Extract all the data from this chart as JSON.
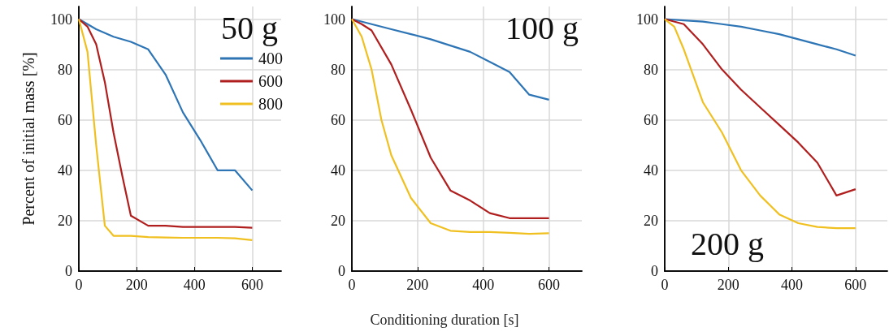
{
  "chart_data": [
    {
      "type": "line",
      "ylabel": "Percent of initial mass [%]",
      "annotations": [
        "50 g"
      ],
      "xlim": [
        0,
        700
      ],
      "xticks": [
        0,
        200,
        400,
        600
      ],
      "ylim": [
        0,
        105
      ],
      "yticks": [
        0,
        20,
        40,
        60,
        80,
        100
      ],
      "grid": true,
      "legend": "top right",
      "marker": "none",
      "line_style": "solid",
      "series": [
        {
          "name": "400",
          "color": "#2e75b6",
          "x": [
            0,
            60,
            120,
            180,
            240,
            300,
            360,
            420,
            480,
            540,
            600
          ],
          "values": [
            100,
            96,
            93,
            91,
            88,
            78,
            63,
            52,
            40,
            40,
            32
          ]
        },
        {
          "name": "600",
          "color": "#b01e1e",
          "x": [
            0,
            30,
            60,
            90,
            120,
            150,
            180,
            240,
            300,
            360,
            420,
            480,
            540,
            600
          ],
          "values": [
            100,
            97,
            90,
            75,
            55,
            38,
            22,
            18,
            18,
            17.5,
            17.5,
            17.5,
            17.5,
            17.2
          ]
        },
        {
          "name": "800",
          "color": "#f0c020",
          "x": [
            0,
            30,
            60,
            90,
            120,
            180,
            240,
            300,
            360,
            420,
            480,
            540,
            600
          ],
          "values": [
            100,
            87,
            50,
            18,
            14,
            14,
            13.5,
            13.3,
            13.2,
            13.2,
            13.2,
            13,
            12.3
          ]
        }
      ]
    },
    {
      "type": "line",
      "xlabel": "Conditioning duration [s]",
      "annotations": [
        "100 g"
      ],
      "xlim": [
        0,
        700
      ],
      "xticks": [
        0,
        200,
        400,
        600
      ],
      "ylim": [
        0,
        105
      ],
      "yticks": [
        0,
        20,
        40,
        60,
        80,
        100
      ],
      "grid": true,
      "marker": "none",
      "line_style": "solid",
      "series": [
        {
          "color": "#2e75b6",
          "x": [
            0,
            60,
            120,
            180,
            240,
            300,
            360,
            420,
            480,
            540,
            600
          ],
          "values": [
            100,
            98,
            96,
            94,
            92,
            89.5,
            87,
            83,
            79,
            70,
            68
          ]
        },
        {
          "color": "#b01e1e",
          "x": [
            0,
            30,
            60,
            120,
            180,
            240,
            300,
            360,
            420,
            480,
            540,
            600
          ],
          "values": [
            100,
            98,
            95.5,
            82,
            64,
            45,
            32,
            28,
            23,
            21,
            21,
            21
          ]
        },
        {
          "color": "#f0c020",
          "x": [
            0,
            30,
            60,
            90,
            120,
            180,
            240,
            300,
            360,
            420,
            480,
            540,
            600
          ],
          "values": [
            100,
            93,
            80,
            60,
            46,
            29,
            19,
            16,
            15.5,
            15.5,
            15.2,
            14.8,
            15
          ]
        }
      ]
    },
    {
      "type": "line",
      "annotations": [
        "200 g"
      ],
      "xlim": [
        0,
        700
      ],
      "xticks": [
        0,
        200,
        400,
        600
      ],
      "ylim": [
        0,
        105
      ],
      "yticks": [
        0,
        20,
        40,
        60,
        80,
        100
      ],
      "grid": true,
      "marker": "none",
      "line_style": "solid",
      "series": [
        {
          "color": "#2e75b6",
          "x": [
            0,
            60,
            120,
            180,
            240,
            300,
            360,
            420,
            480,
            540,
            600
          ],
          "values": [
            100,
            99.5,
            99,
            98,
            97,
            95.5,
            94,
            92,
            90,
            88,
            85.5
          ]
        },
        {
          "color": "#b01e1e",
          "x": [
            0,
            60,
            120,
            180,
            240,
            300,
            360,
            420,
            480,
            540,
            600
          ],
          "values": [
            100,
            98,
            90,
            80,
            72,
            65,
            58,
            51,
            43,
            30,
            32.5
          ]
        },
        {
          "color": "#f0c020",
          "x": [
            0,
            30,
            60,
            120,
            180,
            240,
            300,
            360,
            420,
            480,
            540,
            600
          ],
          "values": [
            100,
            97,
            88,
            67,
            55,
            40,
            30,
            22.5,
            19,
            17.5,
            17,
            17
          ]
        }
      ]
    }
  ]
}
